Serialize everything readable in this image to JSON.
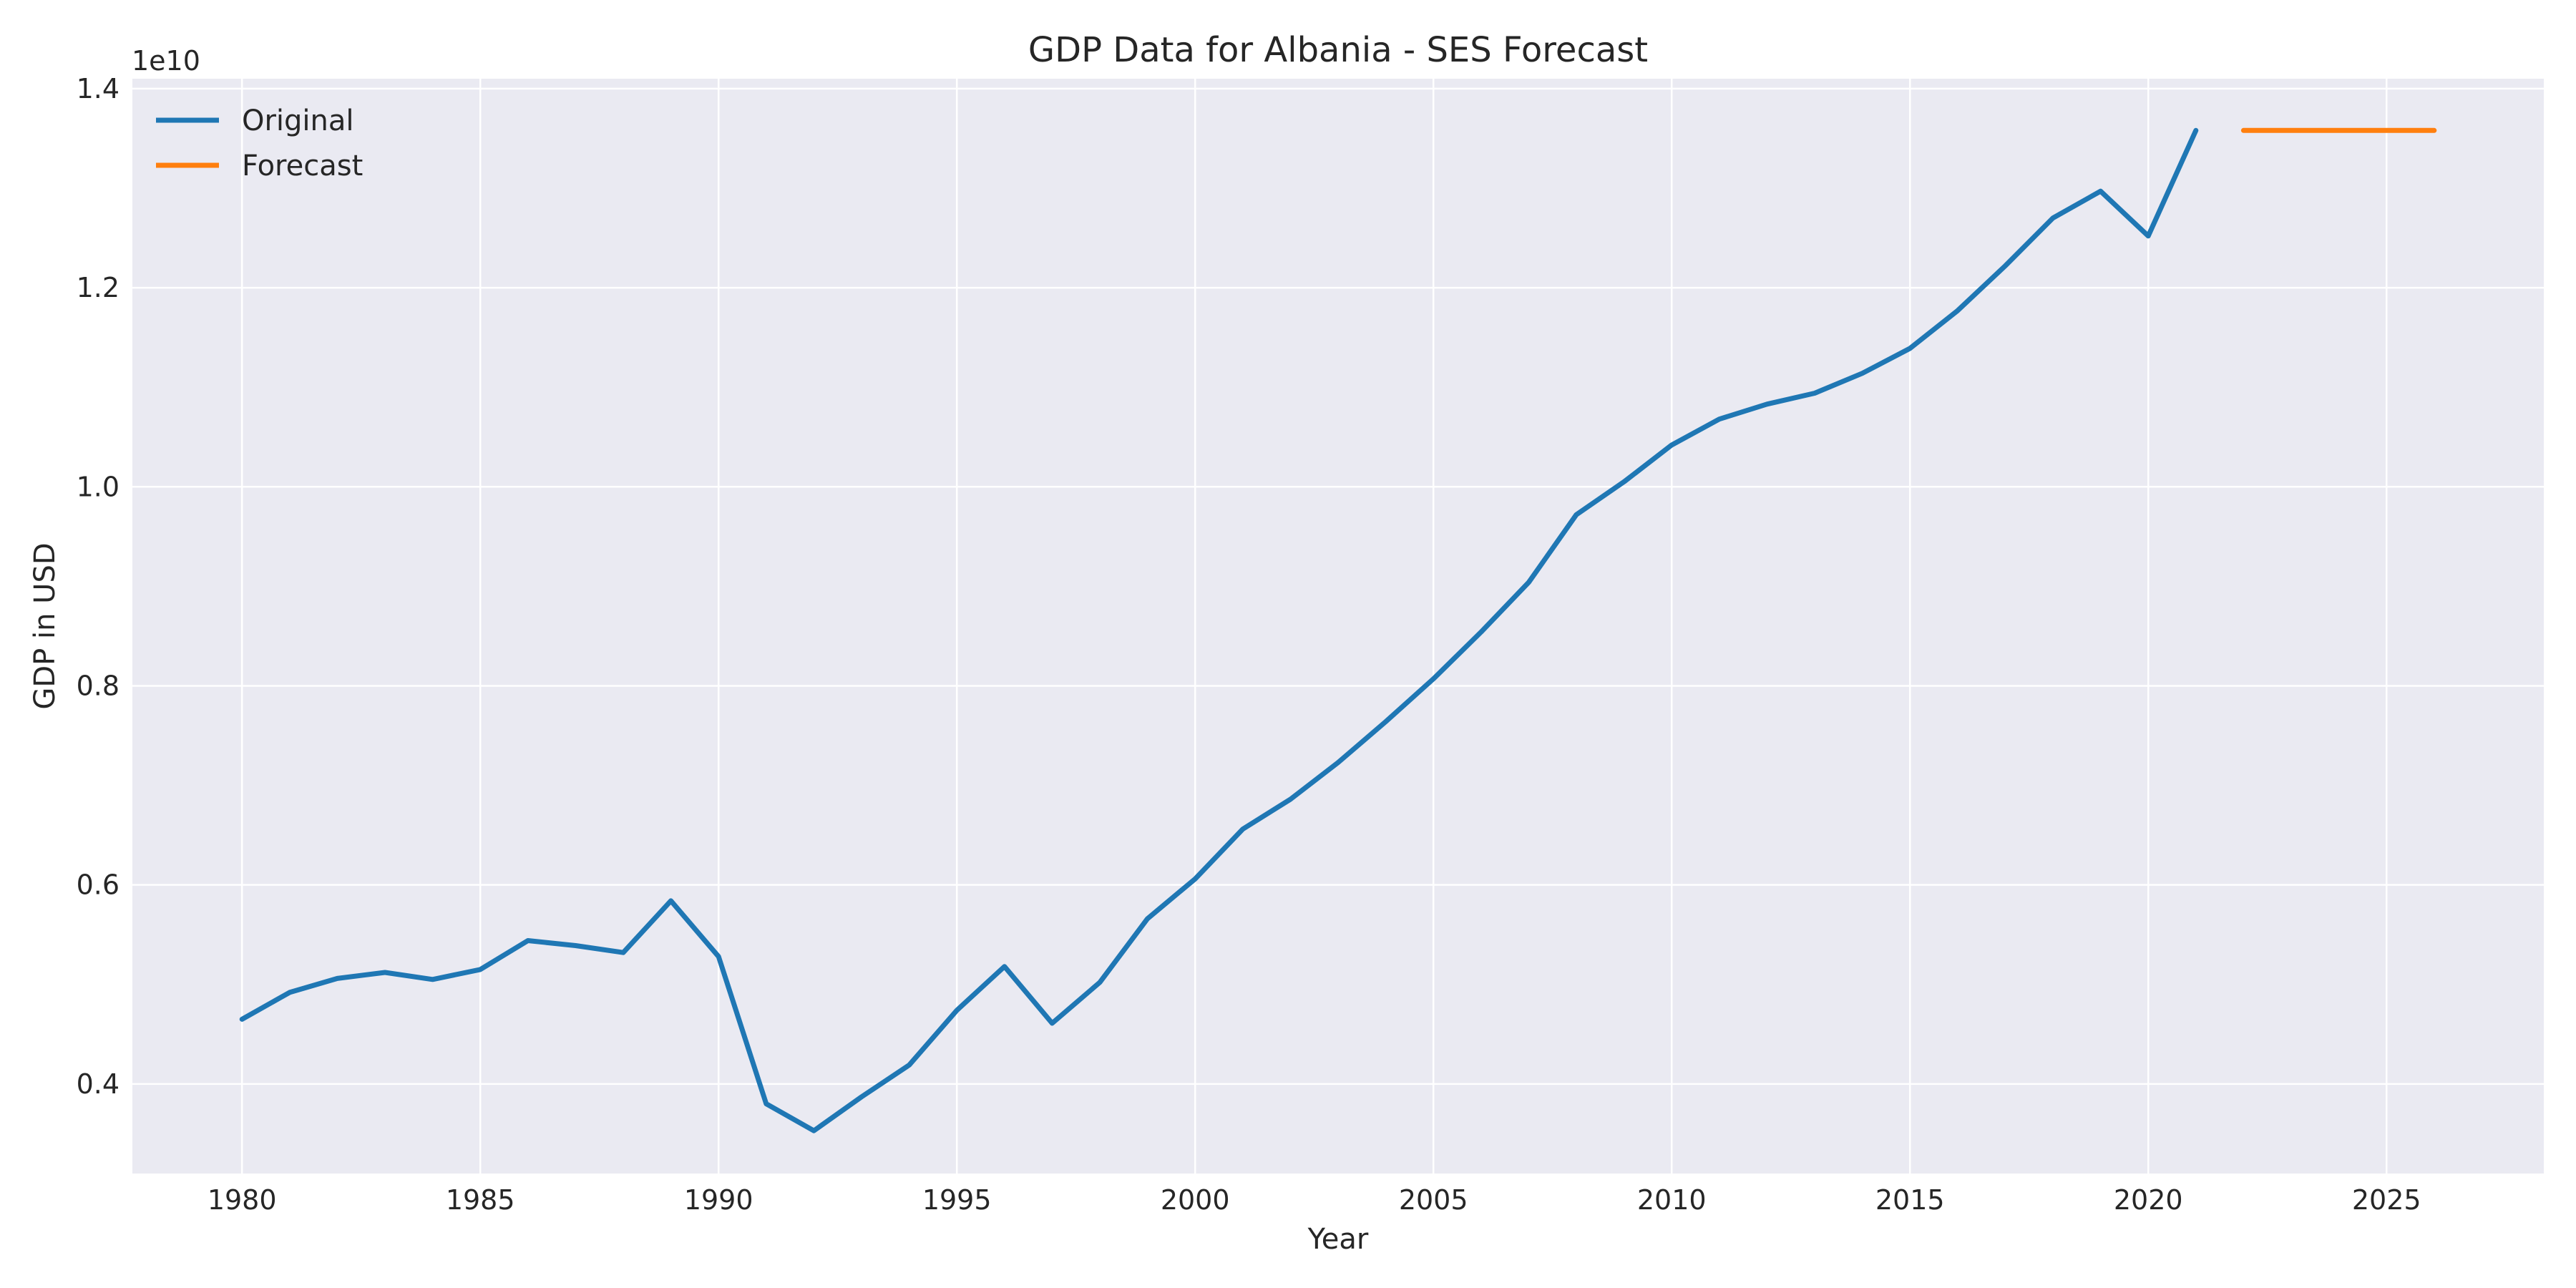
{
  "chart_data": {
    "type": "line",
    "title": "GDP Data for Albania - SES Forecast",
    "xlabel": "Year",
    "ylabel": "GDP in USD",
    "y_offset_label": "1e10",
    "xlim": [
      1977.7,
      2028.3
    ],
    "ylim": [
      3.1,
      14.1
    ],
    "x_ticks": [
      1980,
      1985,
      1990,
      1995,
      2000,
      2005,
      2010,
      2015,
      2020,
      2025
    ],
    "y_ticks": [
      0.4,
      0.6,
      0.8,
      1.0,
      1.2,
      1.4
    ],
    "y_tick_values": [
      4,
      6,
      8,
      10,
      12,
      14
    ],
    "y_scale_note": "values in units of 1e9 USD; axis ticks displayed in units of 1e10",
    "grid": true,
    "legend_position": "top-left",
    "series": [
      {
        "name": "Original",
        "color": "#1f77b4",
        "x": [
          1980,
          1981,
          1982,
          1983,
          1984,
          1985,
          1986,
          1987,
          1988,
          1989,
          1990,
          1991,
          1992,
          1993,
          1994,
          1995,
          1996,
          1997,
          1998,
          1999,
          2000,
          2001,
          2002,
          2003,
          2004,
          2005,
          2006,
          2007,
          2008,
          2009,
          2010,
          2011,
          2012,
          2013,
          2014,
          2015,
          2016,
          2017,
          2018,
          2019,
          2020,
          2021
        ],
        "y": [
          4.65,
          4.92,
          5.06,
          5.12,
          5.05,
          5.15,
          5.44,
          5.39,
          5.32,
          5.84,
          5.28,
          3.8,
          3.53,
          3.87,
          4.19,
          4.74,
          5.18,
          4.61,
          5.02,
          5.66,
          6.06,
          6.56,
          6.86,
          7.23,
          7.64,
          8.07,
          8.54,
          9.04,
          9.72,
          10.05,
          10.42,
          10.68,
          10.83,
          10.94,
          11.14,
          11.39,
          11.77,
          12.22,
          12.7,
          12.97,
          12.52,
          13.58
        ]
      },
      {
        "name": "Forecast",
        "color": "#ff7f0e",
        "x": [
          2022,
          2023,
          2024,
          2025,
          2026
        ],
        "y": [
          13.58,
          13.58,
          13.58,
          13.58,
          13.58
        ]
      }
    ]
  }
}
